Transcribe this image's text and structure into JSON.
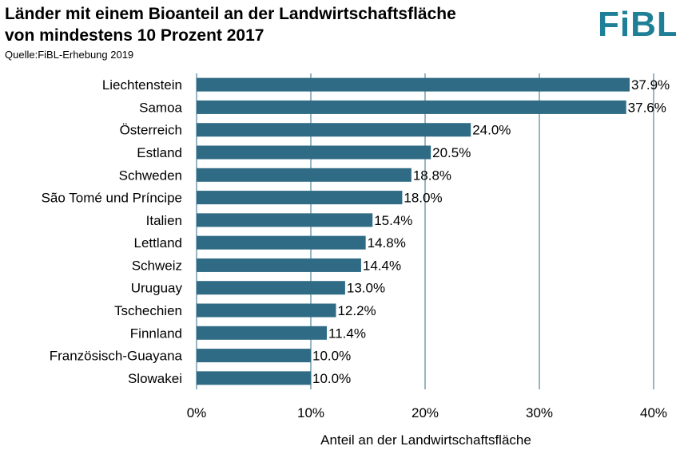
{
  "header": {
    "title_line1": "Länder mit einem Bioanteil  an der Landwirtschaftsfläche",
    "title_line2": "von mindestens 10 Prozent 2017",
    "source": "Quelle:FiBL-Erhebung 2019",
    "logo_text": "FiBL"
  },
  "colors": {
    "bar": "#2f6b85",
    "grid": "#2f6b85",
    "logo": "#1e7f96"
  },
  "chart_data": {
    "type": "bar",
    "orientation": "horizontal",
    "title": "Länder mit einem Bioanteil  an der Landwirtschaftsfläche von mindestens 10 Prozent 2017",
    "xlabel": "Anteil an der Landwirtschaftsfläche",
    "ylabel": "",
    "xlim": [
      0,
      40
    ],
    "xticks": [
      0,
      10,
      20,
      30,
      40
    ],
    "xtick_labels": [
      "0%",
      "10%",
      "20%",
      "30%",
      "40%"
    ],
    "grid": true,
    "categories": [
      "Liechtenstein",
      "Samoa",
      "Österreich",
      "Estland",
      "Schweden",
      "São Tomé und Príncipe",
      "Italien",
      "Lettland",
      "Schweiz",
      "Uruguay",
      "Tschechien",
      "Finnland",
      "Französisch-Guayana",
      "Slowakei"
    ],
    "values": [
      37.9,
      37.6,
      24.0,
      20.5,
      18.8,
      18.0,
      15.4,
      14.8,
      14.4,
      13.0,
      12.2,
      11.4,
      10.0,
      10.0
    ],
    "value_labels": [
      "37.9%",
      "37.6%",
      "24.0%",
      "20.5%",
      "18.8%",
      "18.0%",
      "15.4%",
      "14.8%",
      "14.4%",
      "13.0%",
      "12.2%",
      "11.4%",
      "10.0%",
      "10.0%"
    ]
  }
}
